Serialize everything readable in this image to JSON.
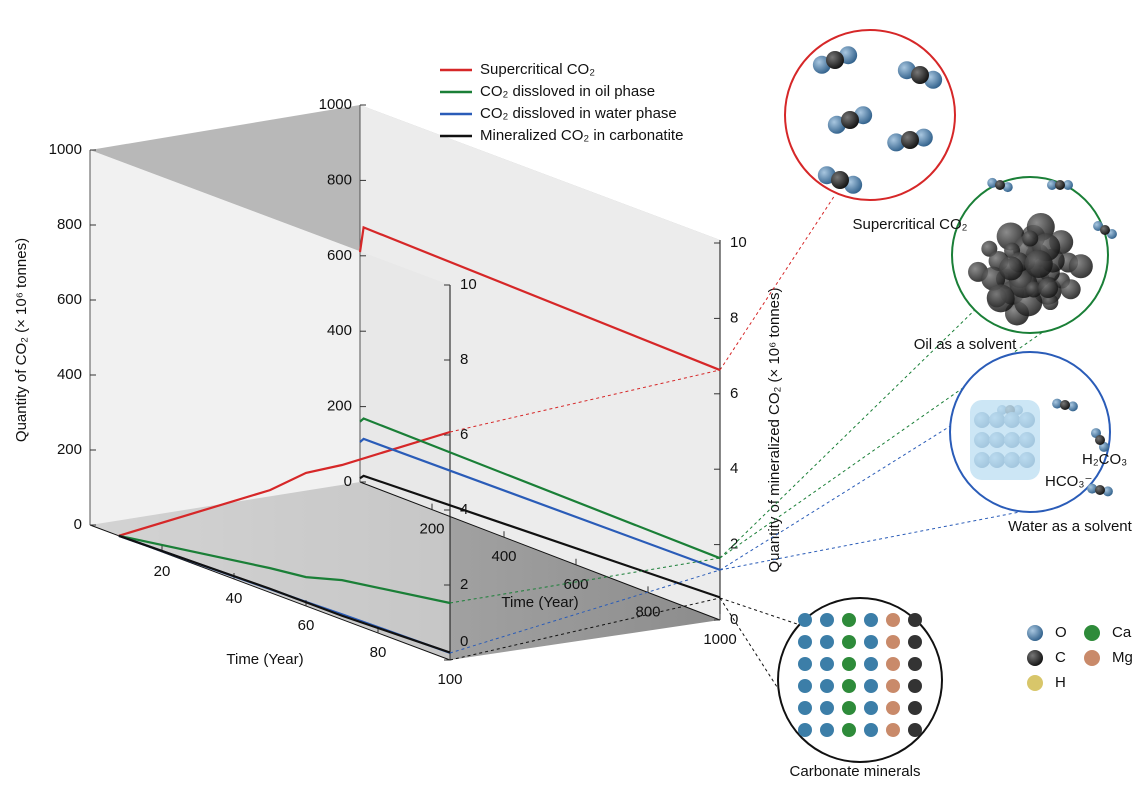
{
  "chart_data": [
    {
      "type": "line",
      "x_label": "Time (Year)",
      "y_label": "Quantity of CO₂ (× 10⁶ tonnes)",
      "x": [
        8,
        50,
        60,
        70,
        100
      ],
      "xlim": [
        0,
        100
      ],
      "xticks": [
        20,
        40,
        60,
        80,
        100
      ],
      "ylim": [
        0,
        1000
      ],
      "yticks": [
        0,
        200,
        400,
        600,
        800,
        1000
      ],
      "y2lim": [
        0,
        10
      ],
      "y2ticks": [
        0,
        2,
        4,
        6,
        8,
        10
      ],
      "series": [
        {
          "color": "#d62728",
          "values": [
            0,
            273,
            355,
            412,
            608
          ]
        },
        {
          "color": "#1a7f37",
          "values": [
            0,
            65,
            77,
            105,
            152
          ]
        },
        {
          "color": "#2a5cb8",
          "values": [
            0,
            9,
            11,
            14,
            19
          ]
        },
        {
          "color": "#111111",
          "values": [
            0,
            0.1,
            0.1,
            0.1,
            0.2
          ],
          "axis": "y2"
        }
      ]
    },
    {
      "type": "line",
      "x_label": "Time (Year)",
      "y2_label": "Quantity of mineralized CO₂ (× 10⁶ tonnes)",
      "x": [
        0,
        10,
        1000
      ],
      "xlim": [
        0,
        1000
      ],
      "xticks": [
        200,
        400,
        600,
        800,
        1000
      ],
      "ylim": [
        0,
        1000
      ],
      "yticks": [
        0,
        200,
        400,
        600,
        800,
        1000
      ],
      "y2lim": [
        0,
        10
      ],
      "y2ticks": [
        0,
        2,
        4,
        6,
        8,
        10
      ],
      "series": [
        {
          "name": "Supercritical CO₂",
          "color": "#d62728",
          "values": [
            610,
            679,
            663
          ]
        },
        {
          "name": "CO₂ dissloved in oil phase",
          "color": "#1a7f37",
          "values": [
            160,
            172,
            164
          ]
        },
        {
          "name": "CO₂ dissloved in water phase",
          "color": "#2a5cb8",
          "values": [
            106,
            118,
            133
          ]
        },
        {
          "name": "Mineralized CO₂ in carbonatite",
          "color": "#111111",
          "values": [
            0.1,
            0.2,
            0.6
          ],
          "axis": "y2"
        }
      ]
    }
  ],
  "illustrations": {
    "labels": [
      "Supercritical CO₂",
      "Oil as a solvent",
      "Water as a solvent",
      "Carbonate minerals"
    ],
    "formulas": [
      "H₂CO₃",
      "HCO₃⁻"
    ],
    "elements": [
      "O",
      "C",
      "H",
      "Ca",
      "Mg"
    ]
  }
}
